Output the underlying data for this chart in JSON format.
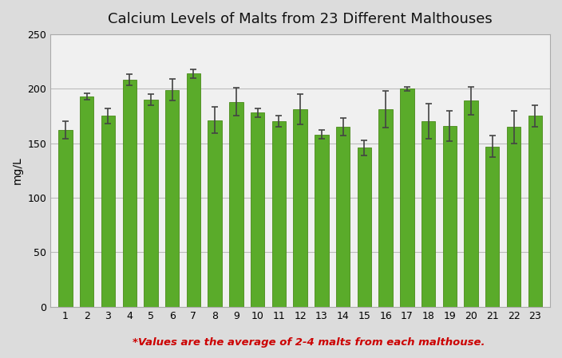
{
  "title": "Calcium Levels of Malts from 23 Different Malthouses",
  "ylabel": "mg/L",
  "annotation": "*Values are the average of 2-4 malts from each malthouse.",
  "bar_color": "#5aab2a",
  "bar_edge_color": "#4a8a1a",
  "error_color": "#444444",
  "figure_background_color": "#dcdcdc",
  "plot_background_color": "#f0f0f0",
  "grid_color": "#bbbbbb",
  "annotation_color": "#cc0000",
  "title_color": "#111111",
  "categories": [
    1,
    2,
    3,
    4,
    5,
    6,
    7,
    8,
    9,
    10,
    11,
    12,
    13,
    14,
    15,
    16,
    17,
    18,
    19,
    20,
    21,
    22,
    23
  ],
  "values": [
    162,
    193,
    175,
    208,
    190,
    199,
    214,
    171,
    188,
    178,
    170,
    181,
    158,
    165,
    146,
    181,
    200,
    170,
    166,
    189,
    147,
    165,
    175
  ],
  "errors": [
    8,
    3,
    7,
    5,
    5,
    10,
    4,
    12,
    13,
    4,
    5,
    14,
    4,
    8,
    7,
    17,
    2,
    16,
    14,
    13,
    10,
    15,
    10
  ],
  "ylim": [
    0,
    250
  ],
  "yticks": [
    0,
    50,
    100,
    150,
    200,
    250
  ],
  "title_fontsize": 13,
  "ylabel_fontsize": 10,
  "tick_fontsize": 9,
  "annotation_fontsize": 9.5,
  "bar_width": 0.65
}
